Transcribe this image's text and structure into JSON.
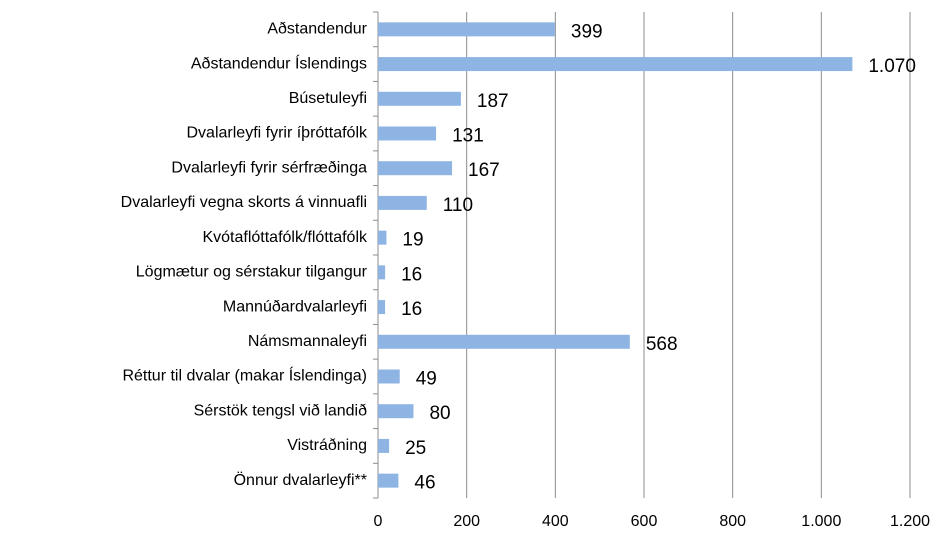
{
  "chart_data": {
    "type": "barh",
    "categories": [
      "Aðstandendur",
      "Aðstandendur Íslendings",
      "Búsetuleyfi",
      "Dvalarleyfi fyrir íþróttafólk",
      "Dvalarleyfi fyrir sérfræðinga",
      "Dvalarleyfi vegna skorts á vinnuafli",
      "Kvótaflóttafólk/flóttafólk",
      "Lögmætur og sérstakur tilgangur",
      "Mannúðardvalarleyfi",
      "Námsmannaleyfi",
      "Réttur til dvalar (makar Íslendinga)",
      "Sérstök tengsl við landið",
      "Vistráðning",
      "Önnur dvalarleyfi**"
    ],
    "values": [
      399,
      1070,
      187,
      131,
      167,
      110,
      19,
      16,
      16,
      568,
      49,
      80,
      25,
      46
    ],
    "value_labels": [
      "399",
      "1.070",
      "187",
      "131",
      "167",
      "110",
      "19",
      "16",
      "16",
      "568",
      "49",
      "80",
      "25",
      "46"
    ],
    "color": "#8eb4e3",
    "xlim": [
      0,
      1200
    ],
    "xticks": [
      0,
      200,
      400,
      600,
      800,
      {
        "value": 1000,
        "label": "1.000"
      },
      {
        "value": 1200,
        "label": "1.200"
      }
    ],
    "grid": true
  }
}
